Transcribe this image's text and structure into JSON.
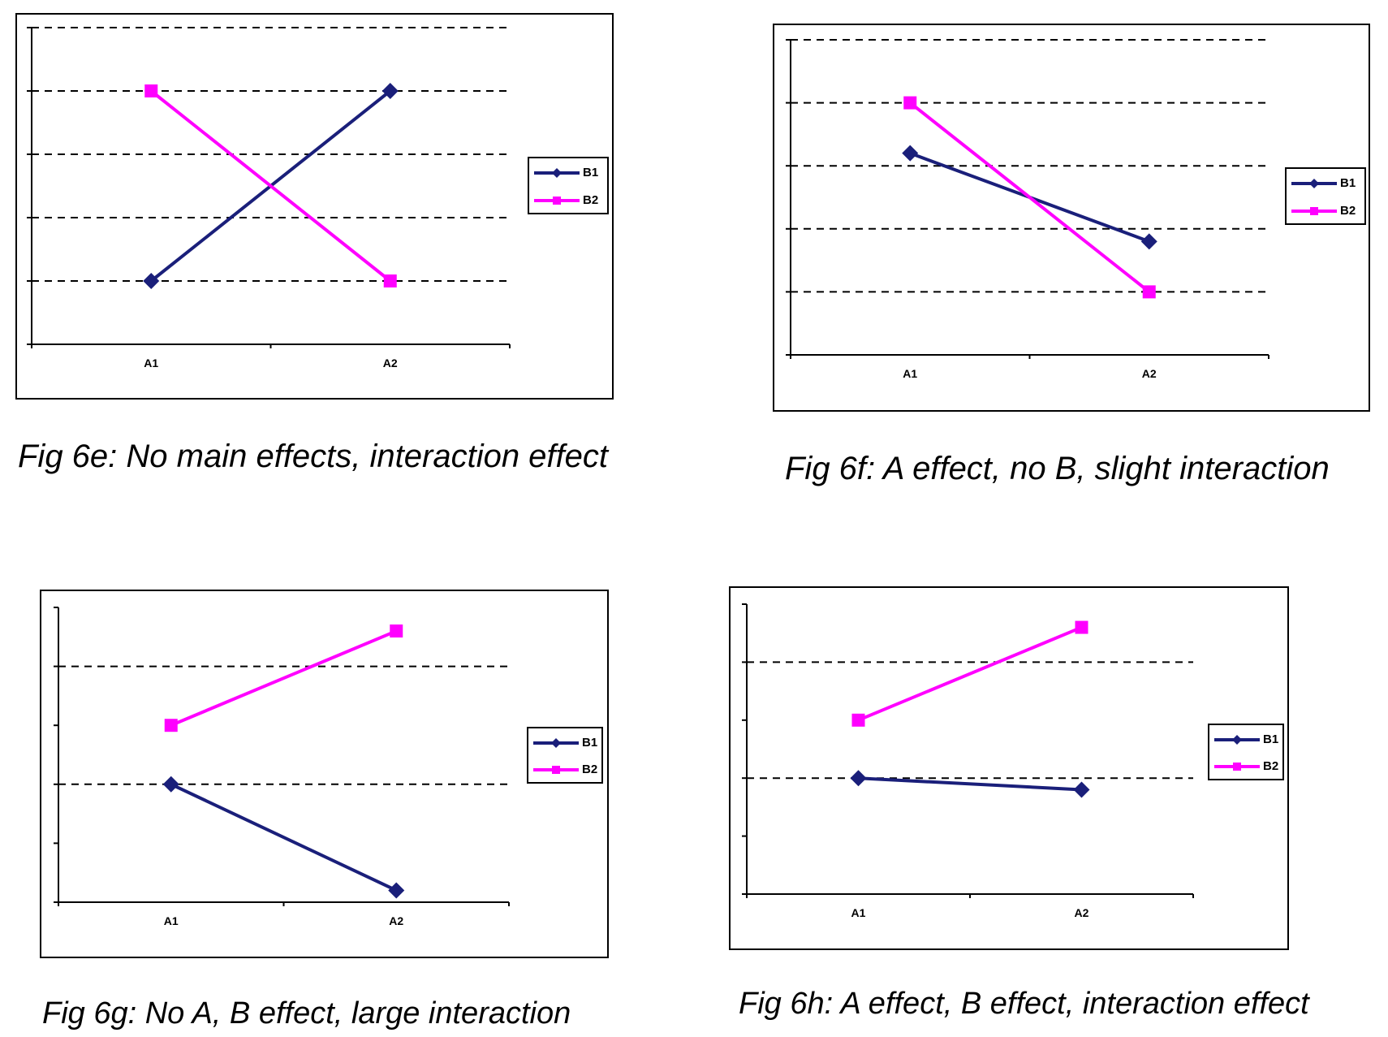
{
  "colors": {
    "B1": "#1a1f7a",
    "B2": "#ff00ff",
    "axis": "#000000",
    "grid": "#000000"
  },
  "chart_data": [
    {
      "id": "6e",
      "type": "line",
      "caption": "Fig 6e: No main effects, interaction effect",
      "categories": [
        "A1",
        "A2"
      ],
      "ylim": [
        0,
        5
      ],
      "gridlines": [
        1,
        2,
        3,
        4,
        5
      ],
      "grid": true,
      "legend_position": "right",
      "series": [
        {
          "name": "B1",
          "marker": "diamond",
          "values": [
            1,
            4
          ]
        },
        {
          "name": "B2",
          "marker": "square",
          "values": [
            4,
            1
          ]
        }
      ]
    },
    {
      "id": "6f",
      "type": "line",
      "caption": "Fig 6f: A effect, no B, slight interaction",
      "categories": [
        "A1",
        "A2"
      ],
      "ylim": [
        0,
        5
      ],
      "gridlines": [
        1,
        2,
        3,
        4,
        5
      ],
      "grid": true,
      "legend_position": "right",
      "series": [
        {
          "name": "B1",
          "marker": "diamond",
          "values": [
            3.2,
            1.8
          ]
        },
        {
          "name": "B2",
          "marker": "square",
          "values": [
            4,
            1
          ]
        }
      ]
    },
    {
      "id": "6g",
      "type": "line",
      "caption": "Fig 6g: No A, B effect, large interaction",
      "categories": [
        "A1",
        "A2"
      ],
      "ylim": [
        0,
        5
      ],
      "gridlines": [
        2,
        4
      ],
      "grid": true,
      "legend_position": "right",
      "series": [
        {
          "name": "B1",
          "marker": "diamond",
          "values": [
            2,
            0.2
          ]
        },
        {
          "name": "B2",
          "marker": "square",
          "values": [
            3,
            4.6
          ]
        }
      ]
    },
    {
      "id": "6h",
      "type": "line",
      "caption": "Fig 6h: A effect, B effect, interaction effect",
      "categories": [
        "A1",
        "A2"
      ],
      "ylim": [
        0,
        5
      ],
      "gridlines": [
        2,
        4
      ],
      "grid": true,
      "legend_position": "right",
      "series": [
        {
          "name": "B1",
          "marker": "diamond",
          "values": [
            2,
            1.8
          ]
        },
        {
          "name": "B2",
          "marker": "square",
          "values": [
            3,
            4.6
          ]
        }
      ]
    }
  ]
}
